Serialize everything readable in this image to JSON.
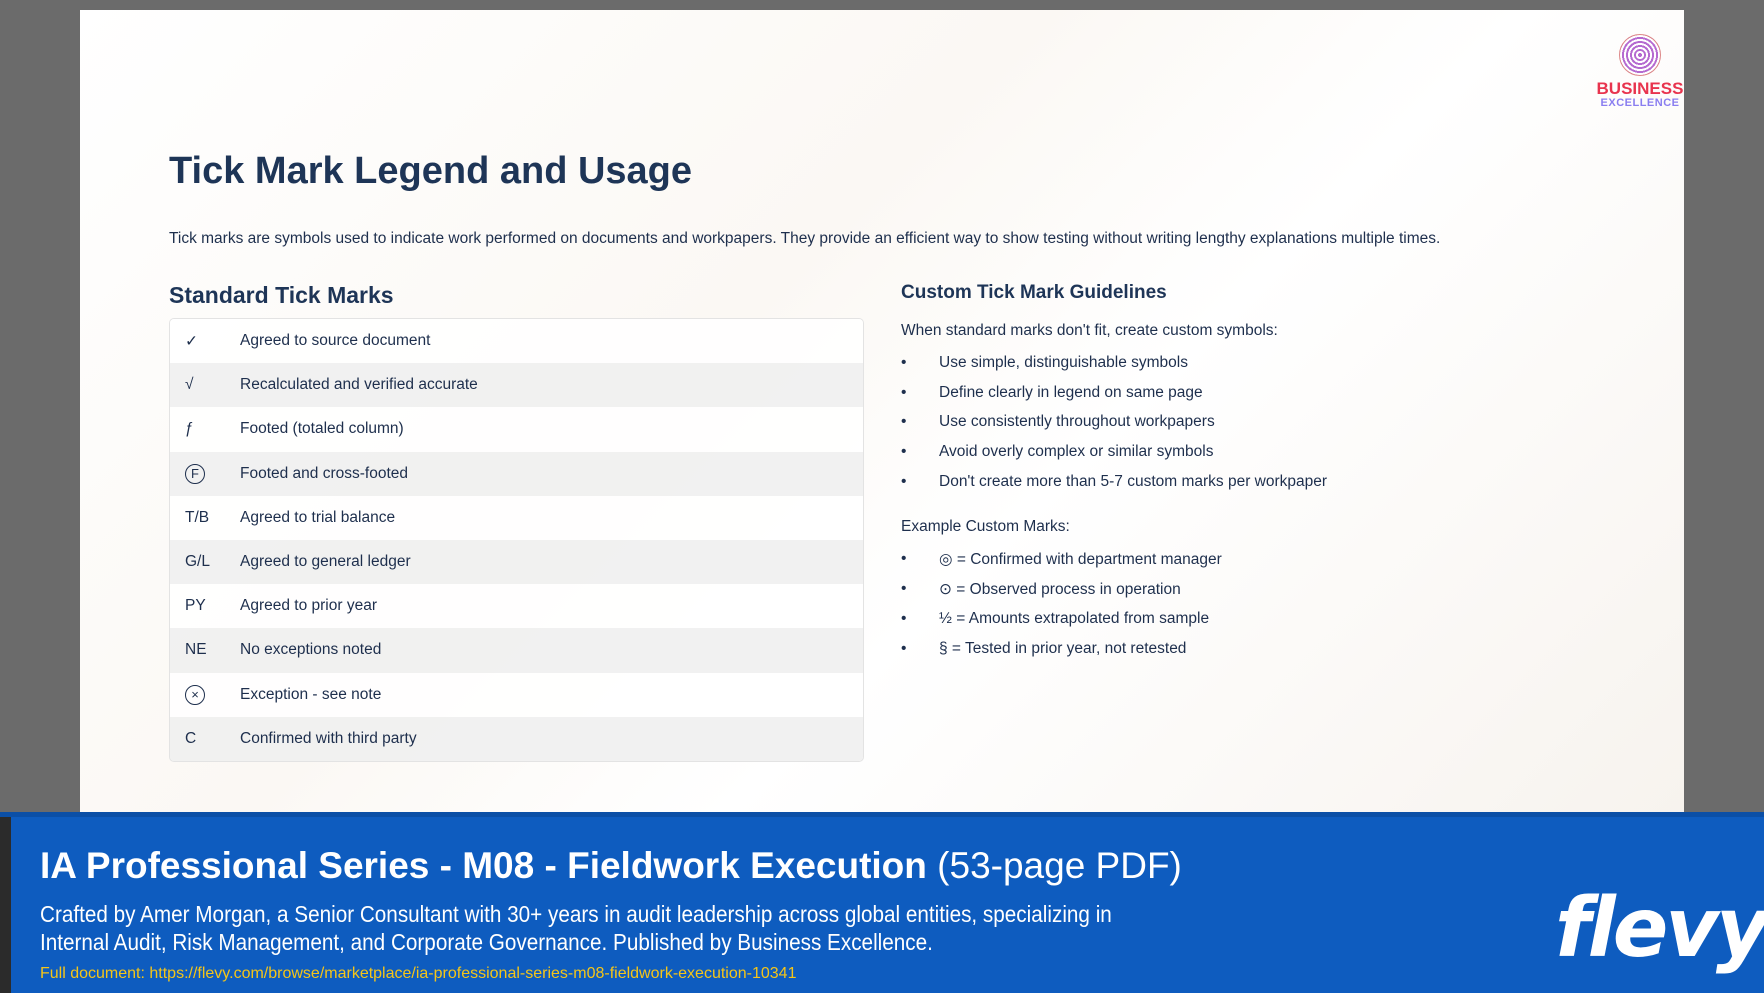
{
  "logo": {
    "line1": "BUSINESS",
    "line2": "EXCELLENCE"
  },
  "title": "Tick Mark Legend and Usage",
  "intro": "Tick marks are symbols used to indicate work performed on documents and workpapers. They provide an efficient way to show testing without writing lengthy explanations multiple times.",
  "standard": {
    "heading": "Standard Tick Marks",
    "rows": [
      {
        "symbol": "✓",
        "meaning": "Agreed to source document"
      },
      {
        "symbol": "√",
        "meaning": "Recalculated and verified accurate"
      },
      {
        "symbol": "ƒ",
        "meaning": "Footed (totaled column)"
      },
      {
        "symbol": "F",
        "meaning": "Footed and cross-footed"
      },
      {
        "symbol": "T/B",
        "meaning": "Agreed to trial balance"
      },
      {
        "symbol": "G/L",
        "meaning": "Agreed to general ledger"
      },
      {
        "symbol": "PY",
        "meaning": "Agreed to prior year"
      },
      {
        "symbol": "NE",
        "meaning": "No exceptions noted"
      },
      {
        "symbol": "×",
        "meaning": "Exception - see note"
      },
      {
        "symbol": "C",
        "meaning": "Confirmed with third party"
      }
    ]
  },
  "custom": {
    "heading": "Custom Tick Mark Guidelines",
    "intro": "When standard marks don't fit, create custom symbols:",
    "guidelines": [
      "Use simple, distinguishable symbols",
      "Define clearly in legend on same page",
      "Use consistently throughout workpapers",
      "Avoid overly complex or similar symbols",
      "Don't create more than 5-7 custom marks per workpaper"
    ],
    "examples_heading": "Example Custom Marks:",
    "examples": [
      "◎ = Confirmed with department manager",
      "⊙ = Observed process in operation",
      "½ = Amounts extrapolated from sample",
      "§ = Tested in prior year, not retested"
    ]
  },
  "footer": {
    "title": "IA Professional Series - M08 - Fieldwork Execution",
    "pages": "(53-page PDF)",
    "description": "Crafted by Amer Morgan, a Senior Consultant with 30+ years in audit leadership across global entities, specializing in Internal Audit, Risk Management, and Corporate Governance. Published by Business Excellence.",
    "link": "Full document: https://flevy.com/browse/marketplace/ia-professional-series-m08-fieldwork-execution-10341",
    "brand": "flevy"
  }
}
